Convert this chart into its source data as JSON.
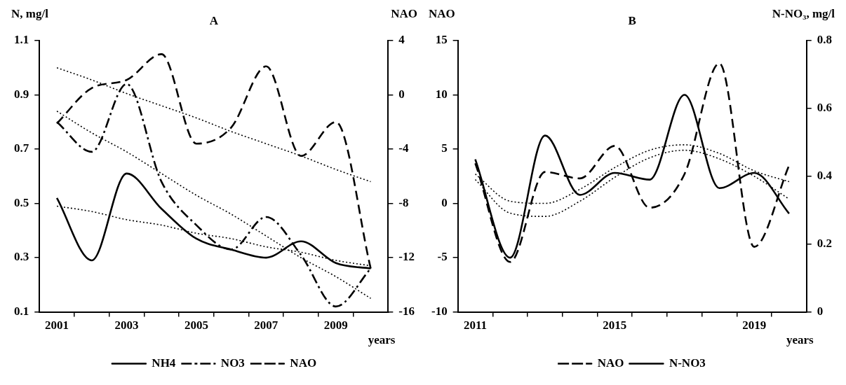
{
  "chart_data": [
    {
      "type": "line",
      "title": "A",
      "xlabel": "years",
      "ylabel": "N, mg/l",
      "y2label": "NAO",
      "legend": "bottom",
      "marker": "none",
      "grid": false,
      "x": [
        2001,
        2002,
        2003,
        2004,
        2005,
        2006,
        2007,
        2008,
        2009,
        2010
      ],
      "xlim": [
        2000.5,
        2010.5
      ],
      "xticks": [
        2001,
        {
          "value": 2001.5,
          "label": null
        },
        {
          "value": 2002.5,
          "label": null
        },
        2003,
        {
          "value": 2003.5,
          "label": null
        },
        {
          "value": 2004.5,
          "label": null
        },
        2005,
        {
          "value": 2005.5,
          "label": null
        },
        {
          "value": 2006.5,
          "label": null
        },
        2007,
        {
          "value": 2007.5,
          "label": null
        },
        {
          "value": 2008.5,
          "label": null
        },
        2009,
        {
          "value": 2009.5,
          "label": null
        }
      ],
      "ylim": [
        0.1,
        1.1
      ],
      "yticks": [
        0.1,
        0.3,
        0.5,
        0.7,
        0.9,
        1.1
      ],
      "y2lim": [
        -16,
        4
      ],
      "y2ticks": [
        -16,
        -12,
        -8,
        -4,
        0,
        4
      ],
      "series": [
        {
          "name": "NH4",
          "color": "#000000",
          "line_style": "solid",
          "values": [
            0.52,
            0.29,
            0.61,
            0.48,
            0.37,
            0.33,
            0.3,
            0.36,
            0.28,
            0.26
          ]
        },
        {
          "name": "NO3",
          "color": "#000000",
          "line_style": "dashdot",
          "values": [
            0.8,
            0.69,
            0.94,
            0.58,
            0.42,
            0.33,
            0.45,
            0.31,
            0.12,
            0.26
          ]
        },
        {
          "name": "NAO",
          "color": "#000000",
          "line_style": "dashed",
          "axis": "y2",
          "values": [
            -2.1,
            0.5,
            1.1,
            3.0,
            -3.6,
            -2.4,
            2.1,
            -4.5,
            -2.0,
            -12.8
          ]
        },
        {
          "type": "line",
          "color": "#000000",
          "line_style": "dotted",
          "values": [
            0.49,
            0.47,
            0.44,
            0.42,
            0.39,
            0.37,
            0.34,
            0.32,
            0.29,
            0.27
          ]
        },
        {
          "type": "line",
          "color": "#000000",
          "line_style": "dotted",
          "values": [
            0.84,
            0.76,
            0.69,
            0.61,
            0.53,
            0.46,
            0.38,
            0.3,
            0.23,
            0.15
          ]
        },
        {
          "type": "line",
          "color": "#000000",
          "line_style": "dotted",
          "axis": "y2",
          "values": [
            2.0,
            1.1,
            0.1,
            -0.8,
            -1.7,
            -2.7,
            -3.6,
            -4.5,
            -5.5,
            -6.4
          ]
        }
      ]
    },
    {
      "type": "line",
      "title": "B",
      "xlabel": "years",
      "ylabel": "NAO",
      "y2label": "N-NO₃, mg/l",
      "legend": "bottom",
      "marker": "none",
      "grid": false,
      "x": [
        2011,
        2012,
        2013,
        2014,
        2015,
        2016,
        2017,
        2018,
        2019,
        2020
      ],
      "xlim": [
        2010.5,
        2020.5
      ],
      "xticks": [
        2011,
        {
          "value": 2011.5,
          "label": null
        },
        {
          "value": 2012.5,
          "label": null
        },
        {
          "value": 2013.5,
          "label": null
        },
        {
          "value": 2014.5,
          "label": null
        },
        2015,
        {
          "value": 2015.5,
          "label": null
        },
        {
          "value": 2016.5,
          "label": null
        },
        {
          "value": 2017.5,
          "label": null
        },
        {
          "value": 2018.5,
          "label": null
        },
        2019,
        {
          "value": 2019.5,
          "label": null
        }
      ],
      "ylim": [
        -10,
        15
      ],
      "yticks": [
        -10,
        -5,
        0,
        5,
        10,
        15
      ],
      "y2lim": [
        0,
        0.8
      ],
      "y2ticks": [
        0,
        0.2,
        0.4,
        0.6,
        0.8
      ],
      "series": [
        {
          "name": "NAO",
          "color": "#000000",
          "line_style": "dashed",
          "values": [
            3.7,
            -5.4,
            2.9,
            2.3,
            5.3,
            -0.4,
            2.7,
            12.9,
            -4.0,
            3.5
          ]
        },
        {
          "name": "N-NO3",
          "color": "#000000",
          "line_style": "solid",
          "axis": "y2",
          "values": [
            0.45,
            0.16,
            0.52,
            0.345,
            0.41,
            0.39,
            0.64,
            0.365,
            0.41,
            0.29
          ]
        },
        {
          "type": "line",
          "color": "#000000",
          "line_style": "dotted",
          "values": [
            2.7,
            0.2,
            0.0,
            1.3,
            3.3,
            4.9,
            5.4,
            4.6,
            3.0,
            2.0
          ]
        },
        {
          "type": "line",
          "color": "#000000",
          "line_style": "dotted",
          "values": [
            2.2,
            -0.9,
            -1.2,
            0.2,
            2.4,
            4.2,
            4.9,
            4.1,
            2.5,
            0.4
          ]
        }
      ]
    }
  ]
}
